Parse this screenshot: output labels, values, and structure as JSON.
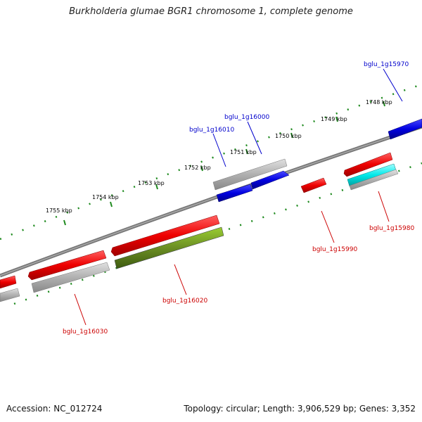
{
  "title": "Burkholderia glumae BGR1 chromosome 1, complete genome",
  "accession": "Accession: NC_012724",
  "summary": "Topology: circular; Length: 3,906,529 bp; Genes: 3,352",
  "ticks": [
    "1748 kbp",
    "1749 kbp",
    "1750 kbp",
    "1751 kbp",
    "1752 kbp",
    "1753 kbp",
    "1754 kbp",
    "1755 kbp"
  ],
  "gene_labels": [
    "bglu_1g15970",
    "bglu_1g16000",
    "bglu_1g16010",
    "bglu_1g15980",
    "bglu_1g15990",
    "bglu_1g16020",
    "bglu_1g16030"
  ],
  "colors": {
    "backbone": "#777777",
    "tick": "#1e8a1e",
    "cds": "#e00000",
    "gene": "#b4b4b4",
    "blue_feature": "#0000dd",
    "cyan_feature": "#00e0e0",
    "olive_feature": "#6b8e23",
    "forward_label": "#0000cc",
    "reverse_label": "#cc0000"
  }
}
